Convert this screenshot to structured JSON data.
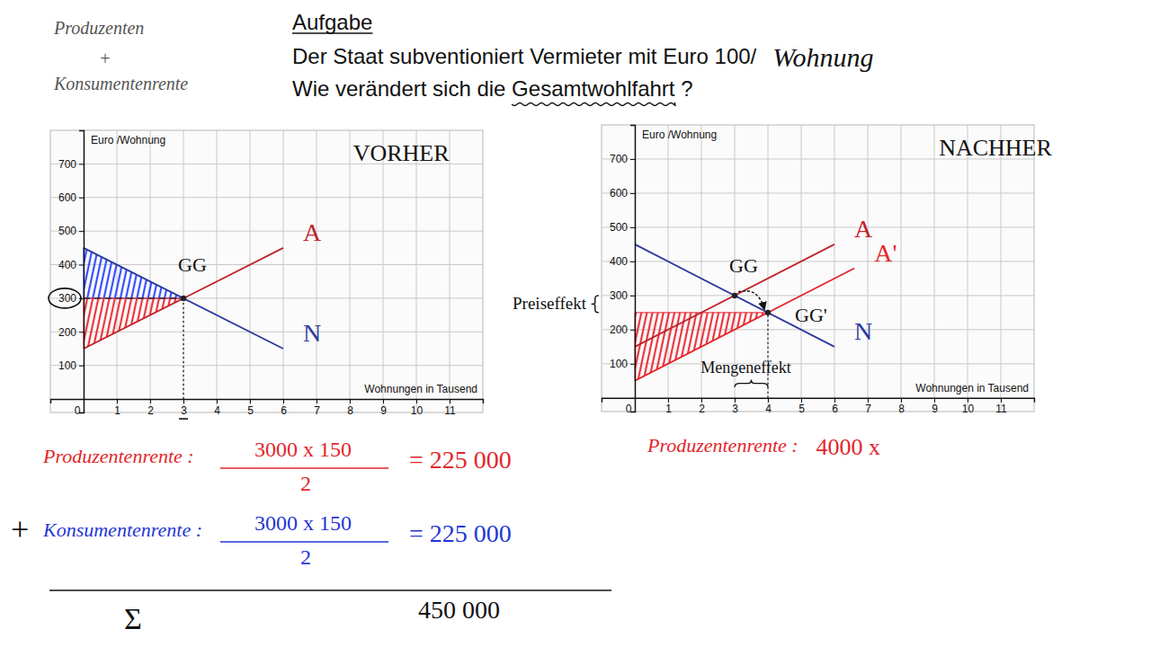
{
  "page": {
    "note": [
      "Produzenten",
      "+",
      "Konsumentenrente"
    ],
    "heading": "Aufgabe",
    "task_line1": "Der Staat subventioniert Vermieter mit Euro 100/",
    "task_line1_note": "Wohnung",
    "task_line2": [
      "Wie verändert sich die ",
      "Gesamtwohlfahrt",
      " ?"
    ],
    "calc": [
      {
        "label": "Produzentenrente :",
        "numerator": "3000 x 150",
        "denominator": "2",
        "result": "= 225 000",
        "color": "#e3262b"
      },
      {
        "sign": "+",
        "label": "Konsumentenrente :",
        "numerator": "3000 x 150",
        "denominator": "2",
        "result": "= 225 000",
        "color": "#2536d6"
      }
    ],
    "sum": {
      "symbol": "Σ",
      "result": "450 000"
    },
    "calc_after": {
      "label": "Produzentenrente :",
      "expression": "4000 x",
      "color": "#e3262b"
    }
  },
  "chart_data": [
    {
      "type": "line",
      "title": "VORHER",
      "x_label": "Wohnungen in Tausend",
      "y_label": "Euro /Wohnung",
      "xlim": [
        -1,
        12
      ],
      "ylim": [
        -40,
        800
      ],
      "xticks": [
        0,
        1,
        2,
        3,
        4,
        5,
        6,
        7,
        8,
        9,
        10,
        11
      ],
      "yticks": [
        100,
        200,
        300,
        400,
        500,
        600,
        700
      ],
      "grid": true,
      "series": [
        {
          "name": "A",
          "color": "#c0242c",
          "x": [
            0,
            6
          ],
          "values": [
            150,
            450
          ]
        },
        {
          "name": "N",
          "color": "#2b3a9e",
          "x": [
            0,
            6
          ],
          "values": [
            450,
            150
          ]
        }
      ],
      "areas": [
        {
          "color": "#1f3cff",
          "x": [
            0,
            0,
            3
          ],
          "values": [
            450,
            300,
            300
          ]
        },
        {
          "color": "#e8202a",
          "x": [
            0,
            0,
            3
          ],
          "values": [
            300,
            150,
            300
          ]
        }
      ],
      "guides": [
        {
          "x": [
            0,
            3
          ],
          "values": [
            300,
            300
          ],
          "line_style": "dashed"
        },
        {
          "x": [
            3,
            3
          ],
          "values": [
            0,
            300
          ],
          "line_style": "dotted"
        }
      ],
      "points": [
        {
          "label": "GG",
          "x": 3,
          "y": 300
        }
      ],
      "circled_yticks": [
        300
      ],
      "underlined_xticks": [
        3
      ]
    },
    {
      "type": "line",
      "title": "NACHHER",
      "x_label": "Wohnungen in Tausend",
      "y_label": "Euro /Wohnung",
      "xlim": [
        -1,
        12
      ],
      "ylim": [
        -40,
        800
      ],
      "xticks": [
        0,
        1,
        2,
        3,
        4,
        5,
        6,
        7,
        8,
        9,
        10,
        11
      ],
      "yticks": [
        100,
        200,
        300,
        400,
        500,
        600,
        700
      ],
      "grid": true,
      "series": [
        {
          "name": "A",
          "color": "#c0242c",
          "x": [
            0,
            6
          ],
          "values": [
            150,
            450
          ]
        },
        {
          "name": "A'",
          "color": "#e3262b",
          "x": [
            0,
            6.6
          ],
          "values": [
            50,
            380
          ]
        },
        {
          "name": "N",
          "color": "#2b3a9e",
          "x": [
            0,
            6
          ],
          "values": [
            450,
            150
          ]
        }
      ],
      "areas": [
        {
          "color": "#e8202a",
          "x": [
            0,
            0,
            4
          ],
          "values": [
            250,
            50,
            250
          ]
        }
      ],
      "guides": [
        {
          "x": [
            4,
            4
          ],
          "values": [
            0,
            250
          ],
          "line_style": "dotted"
        }
      ],
      "points": [
        {
          "label": "GG",
          "x": 3,
          "y": 300
        },
        {
          "label": "GG'",
          "x": 4,
          "y": 250
        }
      ],
      "y_effects": [
        {
          "label": "Preiseffekt",
          "from": 250,
          "to": 300
        }
      ],
      "x_effects": [
        {
          "label": "Mengeneffekt",
          "from": 3,
          "to": 4
        }
      ]
    }
  ]
}
